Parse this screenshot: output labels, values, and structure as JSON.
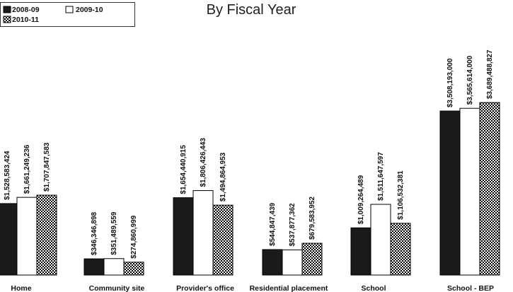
{
  "chart_data": {
    "type": "bar",
    "title": "By Fiscal Year",
    "categories": [
      "Home",
      "Community site",
      "Provider's office",
      "Residential placement",
      "School",
      "School - BEP"
    ],
    "series": [
      {
        "name": "2008-09",
        "color": "#1a1a1a",
        "pattern": "solid",
        "values": [
          1528583424,
          346346898,
          1654440915,
          544847439,
          1009264489,
          3508193000
        ],
        "labels": [
          "$1,528,583,424",
          "$346,346,898",
          "$1,654,440,915",
          "$544,847,439",
          "$1,009,264,489",
          "$3,508,193,000"
        ]
      },
      {
        "name": "2009-10",
        "color": "#ffffff",
        "pattern": "none",
        "values": [
          1661249236,
          351489559,
          1806426443,
          537877362,
          1511647597,
          3565614000
        ],
        "labels": [
          "$1,661,249,236",
          "$351,489,559",
          "$1,806,426,443",
          "$537,877,362",
          "$1,511,647,597",
          "$3,565,614,000"
        ]
      },
      {
        "name": "2010-11",
        "color": "#000000",
        "pattern": "checker",
        "values": [
          1707847583,
          274860999,
          1494864953,
          679583952,
          1106532381,
          3689488827
        ],
        "labels": [
          "$1,707,847,583",
          "$274,860,999",
          "$1,494,864,953",
          "$679,583,952",
          "$1,106,532,381",
          "$3,689,488,827"
        ]
      }
    ],
    "ylim": [
      0,
      3700000000
    ],
    "grid": false,
    "legend_position": "top-left"
  }
}
